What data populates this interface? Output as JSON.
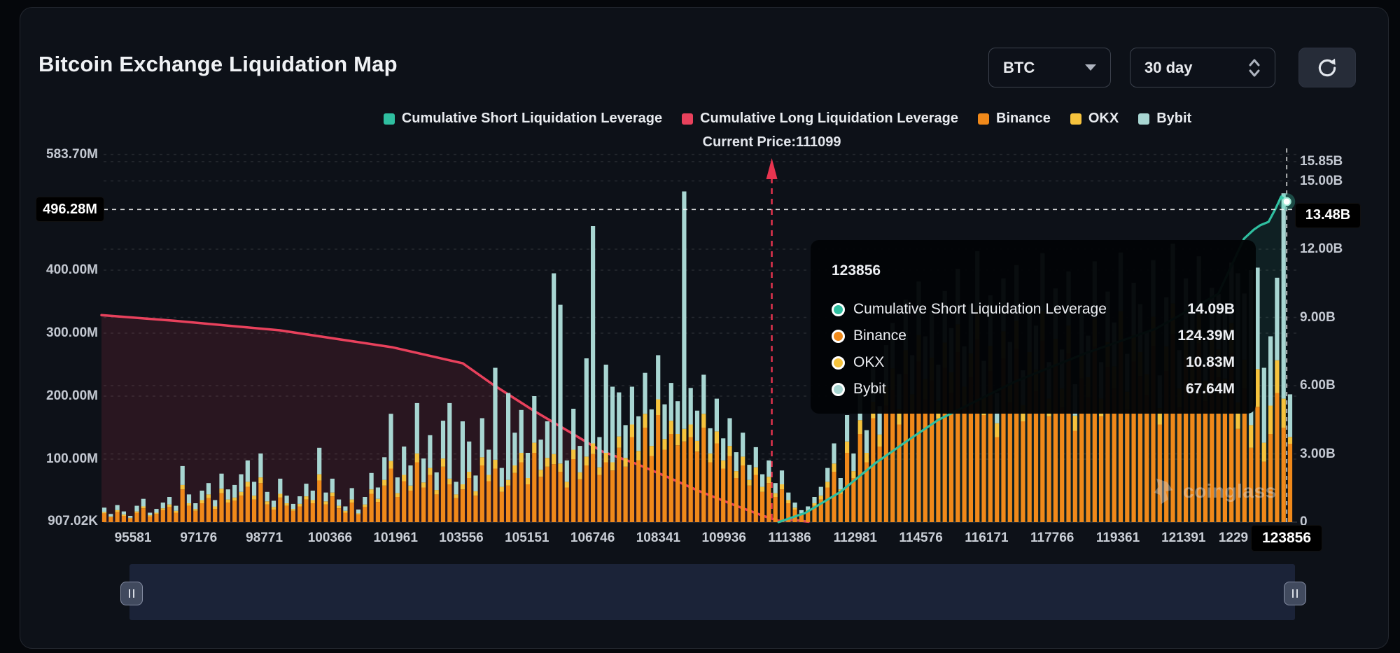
{
  "header": {
    "title": "Bitcoin Exchange Liquidation Map",
    "symbol_select": {
      "value": "BTC"
    },
    "period_select": {
      "value": "30 day"
    },
    "refresh_icon": "refresh-cycle"
  },
  "legend": {
    "items": [
      {
        "label": "Cumulative Short Liquidation Leverage",
        "color": "#2fbfa0"
      },
      {
        "label": "Cumulative Long Liquidation Leverage",
        "color": "#e8415c"
      },
      {
        "label": "Binance",
        "color": "#f0891a"
      },
      {
        "label": "OKX",
        "color": "#f6c33d"
      },
      {
        "label": "Bybit",
        "color": "#a8d6d2"
      }
    ]
  },
  "annotation": {
    "current_price_label": "Current Price:111099",
    "current_price": 111099
  },
  "tooltip": {
    "title": "123856",
    "rows": [
      {
        "label": "Cumulative Short Liquidation Leverage",
        "value": "14.09B",
        "color": "#2fbfa0"
      },
      {
        "label": "Binance",
        "value": "124.39M",
        "color": "#f0891a"
      },
      {
        "label": "OKX",
        "value": "10.83M",
        "color": "#f6c33d"
      },
      {
        "label": "Bybit",
        "value": "67.64M",
        "color": "#a8d6d2"
      }
    ]
  },
  "watermark": {
    "text": "coinglass"
  },
  "chart_data": {
    "type": "bar",
    "title": "Bitcoin Exchange Liquidation Map",
    "left_axis": {
      "unit": "M",
      "ticks": [
        {
          "t": "583.70M",
          "v": 583.7
        },
        {
          "t": "400.00M",
          "v": 400.0
        },
        {
          "t": "300.00M",
          "v": 300.0
        },
        {
          "t": "200.00M",
          "v": 200.0
        },
        {
          "t": "100.00M",
          "v": 100.0
        },
        {
          "t": "907.02K",
          "v": 0.907
        }
      ],
      "highlight": {
        "t": "496.28M",
        "v": 496.28
      }
    },
    "right_axis": {
      "unit": "B",
      "ticks": [
        {
          "t": "15.85B",
          "v": 15.85
        },
        {
          "t": "15.00B",
          "v": 15.0
        },
        {
          "t": "12.00B",
          "v": 12.0
        },
        {
          "t": "9.00B",
          "v": 9.0
        },
        {
          "t": "6.00B",
          "v": 6.0
        },
        {
          "t": "3.00B",
          "v": 3.0
        },
        {
          "t": "0",
          "v": 0
        }
      ],
      "highlight": {
        "t": "13.48B",
        "v": 13.48
      }
    },
    "x_axis": {
      "ticks": [
        "95581",
        "97176",
        "98771",
        "100366",
        "101961",
        "103556",
        "105151",
        "106746",
        "108341",
        "109936",
        "111386",
        "112981",
        "114576",
        "116171",
        "117766",
        "119361",
        "121391",
        "1229"
      ],
      "highlight": "123856"
    },
    "crosshair": {
      "x_value": "123856",
      "short_leverage_B": 14.09
    },
    "series_bars": {
      "names": [
        "Binance",
        "OKX",
        "Bybit"
      ],
      "colors": [
        "#f0891a",
        "#f6c33d",
        "#a8d6d2"
      ],
      "unit": "M",
      "values": [
        [
          14,
          2,
          7
        ],
        [
          8,
          1,
          4
        ],
        [
          16,
          3,
          8
        ],
        [
          10,
          2,
          5
        ],
        [
          6,
          1,
          3
        ],
        [
          15,
          2,
          9
        ],
        [
          22,
          3,
          12
        ],
        [
          9,
          2,
          4
        ],
        [
          13,
          2,
          6
        ],
        [
          19,
          3,
          9
        ],
        [
          24,
          4,
          12
        ],
        [
          15,
          3,
          8
        ],
        [
          52,
          7,
          30
        ],
        [
          26,
          4,
          14
        ],
        [
          18,
          3,
          9
        ],
        [
          30,
          5,
          15
        ],
        [
          38,
          6,
          18
        ],
        [
          21,
          4,
          10
        ],
        [
          46,
          7,
          24
        ],
        [
          31,
          5,
          16
        ],
        [
          34,
          5,
          20
        ],
        [
          42,
          6,
          28
        ],
        [
          56,
          8,
          34
        ],
        [
          36,
          6,
          22
        ],
        [
          62,
          9,
          38
        ],
        [
          28,
          5,
          15
        ],
        [
          20,
          4,
          10
        ],
        [
          39,
          6,
          24
        ],
        [
          26,
          4,
          12
        ],
        [
          18,
          3,
          8
        ],
        [
          25,
          4,
          12
        ],
        [
          36,
          5,
          20
        ],
        [
          30,
          5,
          15
        ],
        [
          66,
          10,
          42
        ],
        [
          28,
          5,
          14
        ],
        [
          41,
          6,
          22
        ],
        [
          22,
          4,
          10
        ],
        [
          15,
          3,
          7
        ],
        [
          31,
          5,
          18
        ],
        [
          12,
          2,
          6
        ],
        [
          24,
          4,
          12
        ],
        [
          45,
          7,
          26
        ],
        [
          32,
          5,
          18
        ],
        [
          58,
          9,
          36
        ],
        [
          85,
          12,
          75
        ],
        [
          40,
          6,
          25
        ],
        [
          65,
          10,
          45
        ],
        [
          50,
          8,
          32
        ],
        [
          95,
          14,
          80
        ],
        [
          55,
          8,
          38
        ],
        [
          75,
          11,
          52
        ],
        [
          44,
          7,
          28
        ],
        [
          88,
          13,
          60
        ],
        [
          60,
          9,
          120
        ],
        [
          38,
          6,
          20
        ],
        [
          52,
          8,
          100
        ],
        [
          70,
          10,
          48
        ],
        [
          42,
          7,
          25
        ],
        [
          90,
          13,
          62
        ],
        [
          65,
          10,
          40
        ],
        [
          85,
          14,
          146
        ],
        [
          48,
          8,
          30
        ],
        [
          58,
          9,
          138
        ],
        [
          78,
          12,
          52
        ],
        [
          95,
          15,
          68
        ],
        [
          60,
          10,
          40
        ],
        [
          110,
          16,
          74
        ],
        [
          72,
          11,
          48
        ],
        [
          88,
          14,
          58
        ],
        [
          92,
          16,
          287
        ],
        [
          80,
          13,
          252
        ],
        [
          55,
          9,
          34
        ],
        [
          100,
          15,
          65
        ],
        [
          68,
          11,
          42
        ],
        [
          90,
          14,
          156
        ],
        [
          108,
          17,
          345
        ],
        [
          75,
          12,
          48
        ],
        [
          95,
          15,
          140
        ],
        [
          82,
          13,
          120
        ],
        [
          118,
          18,
          70
        ],
        [
          88,
          14,
          52
        ],
        [
          135,
          20,
          60
        ],
        [
          98,
          15,
          55
        ],
        [
          150,
          22,
          65
        ],
        [
          105,
          16,
          58
        ],
        [
          170,
          25,
          70
        ],
        [
          115,
          17,
          55
        ],
        [
          140,
          21,
          60
        ],
        [
          122,
          18,
          52
        ],
        [
          128,
          20,
          377
        ],
        [
          135,
          20,
          58
        ],
        [
          112,
          17,
          48
        ],
        [
          150,
          22,
          62
        ],
        [
          95,
          14,
          40
        ],
        [
          125,
          19,
          52
        ],
        [
          85,
          13,
          35
        ],
        [
          105,
          16,
          44
        ],
        [
          70,
          11,
          30
        ],
        [
          90,
          14,
          38
        ],
        [
          58,
          9,
          24
        ],
        [
          75,
          12,
          32
        ],
        [
          48,
          8,
          20
        ],
        [
          62,
          10,
          26
        ],
        [
          40,
          6,
          16
        ],
        [
          52,
          8,
          22
        ],
        [
          30,
          5,
          12
        ],
        [
          20,
          3,
          8
        ],
        [
          12,
          2,
          5
        ],
        [
          16,
          3,
          6
        ],
        [
          26,
          4,
          10
        ],
        [
          36,
          6,
          14
        ],
        [
          55,
          9,
          22
        ],
        [
          80,
          13,
          32
        ],
        [
          45,
          7,
          18
        ],
        [
          110,
          18,
          42
        ],
        [
          70,
          11,
          28
        ],
        [
          140,
          22,
          52
        ],
        [
          95,
          15,
          36
        ],
        [
          165,
          26,
          60
        ],
        [
          120,
          19,
          45
        ],
        [
          185,
          30,
          66
        ],
        [
          210,
          34,
          72
        ],
        [
          155,
          25,
          55
        ],
        [
          235,
          38,
          80
        ],
        [
          175,
          28,
          62
        ],
        [
          255,
          42,
          85
        ],
        [
          195,
          32,
          68
        ],
        [
          225,
          36,
          76
        ],
        [
          165,
          27,
          58
        ],
        [
          245,
          40,
          82
        ],
        [
          205,
          33,
          70
        ],
        [
          270,
          44,
          88
        ],
        [
          185,
          30,
          64
        ],
        [
          230,
          38,
          78
        ],
        [
          290,
          48,
          92
        ],
        [
          170,
          28,
          58
        ],
        [
          240,
          40,
          80
        ],
        [
          135,
          22,
          48
        ],
        [
          260,
          43,
          84
        ],
        [
          190,
          31,
          65
        ],
        [
          275,
          45,
          88
        ],
        [
          160,
          26,
          55
        ],
        [
          232,
          38,
          76
        ],
        [
          208,
          34,
          70
        ],
        [
          288,
          47,
          92
        ],
        [
          168,
          28,
          58
        ],
        [
          250,
          41,
          80
        ],
        [
          182,
          30,
          62
        ],
        [
          268,
          44,
          86
        ],
        [
          145,
          24,
          50
        ],
        [
          228,
          37,
          74
        ],
        [
          198,
          32,
          66
        ],
        [
          278,
          46,
          90
        ],
        [
          168,
          28,
          58
        ],
        [
          246,
          40,
          80
        ],
        [
          212,
          35,
          70
        ],
        [
          288,
          47,
          93
        ],
        [
          178,
          29,
          60
        ],
        [
          255,
          42,
          83
        ],
        [
          232,
          38,
          76
        ],
        [
          202,
          33,
          67
        ],
        [
          280,
          46,
          90
        ],
        [
          155,
          26,
          52
        ],
        [
          240,
          39,
          78
        ],
        [
          298,
          49,
          95
        ],
        [
          182,
          30,
          61
        ],
        [
          260,
          43,
          84
        ],
        [
          222,
          36,
          73
        ],
        [
          284,
          47,
          91
        ],
        [
          192,
          32,
          64
        ],
        [
          250,
          41,
          81
        ],
        [
          230,
          44,
          88
        ],
        [
          172,
          56,
          114
        ],
        [
          268,
          48,
          96
        ],
        [
          148,
          42,
          205
        ],
        [
          212,
          46,
          105
        ],
        [
          118,
          36,
          246
        ],
        [
          183,
          60,
          161
        ],
        [
          96,
          30,
          119
        ],
        [
          140,
          45,
          110
        ],
        [
          205,
          52,
          131
        ],
        [
          150,
          46,
          326
        ],
        [
          124.39,
          10.83,
          67.64
        ]
      ]
    },
    "series_lines": [
      {
        "name": "Cumulative Long Liquidation Leverage",
        "color": "#e8415c",
        "unit": "B",
        "axis": "right",
        "points": [
          [
            94816,
            9.1
          ],
          [
            96601,
            8.85
          ],
          [
            99152,
            8.43
          ],
          [
            101873,
            7.69
          ],
          [
            103591,
            6.98
          ],
          [
            104339,
            6.03
          ],
          [
            105325,
            4.89
          ],
          [
            106125,
            4.03
          ],
          [
            106975,
            3.11
          ],
          [
            107825,
            2.55
          ],
          [
            108505,
            2.03
          ],
          [
            109355,
            1.35
          ],
          [
            110205,
            0.74
          ],
          [
            110885,
            0.28
          ],
          [
            111259,
            0.06
          ],
          [
            111650,
            0.1
          ],
          [
            111990,
            0.02
          ]
        ]
      },
      {
        "name": "Cumulative Short Liquidation Leverage",
        "color": "#2fbfa0",
        "unit": "B",
        "axis": "right",
        "points": [
          [
            111262,
            0.0
          ],
          [
            111908,
            0.4
          ],
          [
            112758,
            1.32
          ],
          [
            113608,
            2.58
          ],
          [
            114459,
            3.66
          ],
          [
            115139,
            4.49
          ],
          [
            117010,
            6.18
          ],
          [
            118710,
            7.42
          ],
          [
            120411,
            8.49
          ],
          [
            121942,
            10.03
          ],
          [
            122571,
            12.46
          ],
          [
            122809,
            12.86
          ],
          [
            122962,
            13.05
          ],
          [
            123166,
            13.2
          ],
          [
            123336,
            13.78
          ],
          [
            123472,
            14.31
          ],
          [
            123608,
            14.09
          ]
        ]
      }
    ]
  }
}
